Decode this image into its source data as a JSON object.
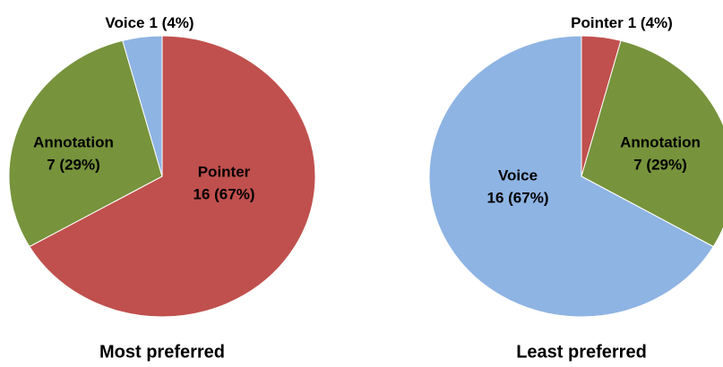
{
  "chart_data": [
    {
      "type": "pie",
      "title": "Most preferred",
      "categories": [
        "Pointer",
        "Annotation",
        "Voice"
      ],
      "values": [
        16,
        7,
        1
      ],
      "value_labels": [
        "16 (67%)",
        "7 (29%)",
        "1 (4%)"
      ],
      "colors": [
        "#c0504d",
        "#77933c",
        "#8eb4e3"
      ]
    },
    {
      "type": "pie",
      "title": "Least preferred",
      "categories": [
        "Pointer",
        "Annotation",
        "Voice"
      ],
      "values": [
        1,
        7,
        16
      ],
      "value_labels": [
        "1 (4%)",
        "7 (29%)",
        "16 (67%)"
      ],
      "colors": [
        "#c0504d",
        "#77933c",
        "#8eb4e3"
      ]
    }
  ]
}
